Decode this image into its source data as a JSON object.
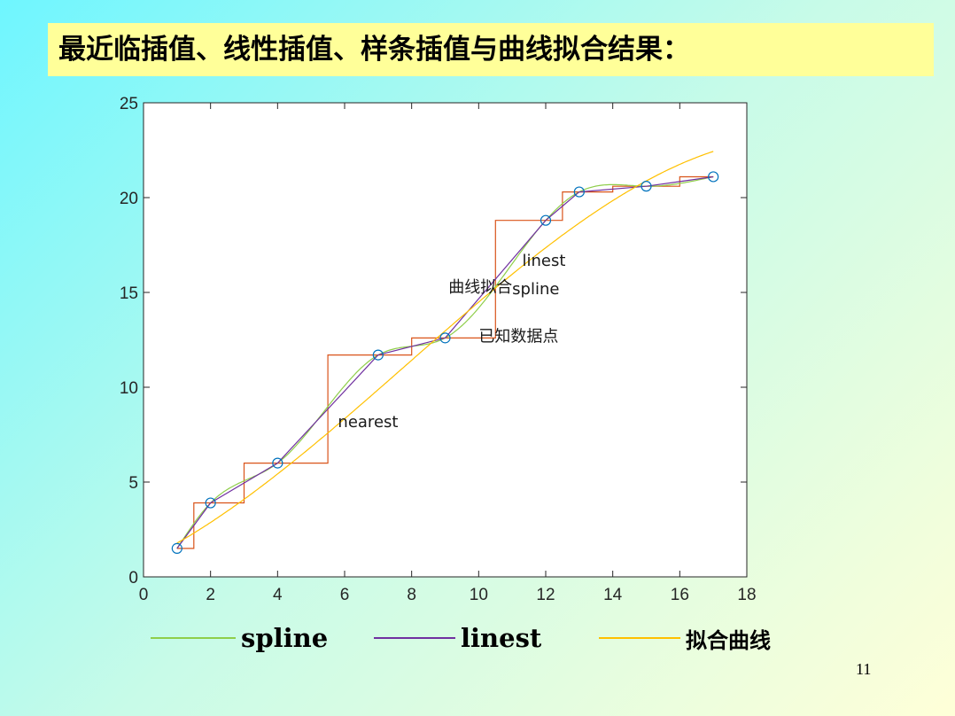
{
  "slide": {
    "title": "最近临插值、线性插值、样条插值与曲线拟合结果：",
    "page_number": "11"
  },
  "legend": [
    {
      "label": "spline",
      "color": "#8fce4a"
    },
    {
      "label": "linest",
      "color": "#7030a0"
    },
    {
      "label": "拟合曲线",
      "color": "#ffc000"
    }
  ],
  "chart_data": {
    "type": "line",
    "xlim": [
      0,
      18
    ],
    "ylim": [
      0,
      25
    ],
    "xticks": [
      0,
      2,
      4,
      6,
      8,
      10,
      12,
      14,
      16,
      18
    ],
    "yticks": [
      0,
      5,
      10,
      15,
      20,
      25
    ],
    "grid": false,
    "points": {
      "x": [
        1,
        2,
        4,
        7,
        9,
        12,
        13,
        15,
        17
      ],
      "y": [
        1.5,
        3.9,
        6.0,
        11.7,
        12.6,
        18.8,
        20.3,
        20.6,
        21.1
      ],
      "color": "#0072bd"
    },
    "series": [
      {
        "key": "nearest",
        "color": "#d95319"
      },
      {
        "key": "linest",
        "color": "#7030a0"
      },
      {
        "key": "spline",
        "color": "#8fce4a"
      },
      {
        "key": "fit",
        "color": "#ffc000",
        "coefficients": [
          -0.00385,
          0.0905,
          0.844,
          0.85
        ]
      }
    ],
    "annotations": [
      {
        "text": "linest",
        "x": 11.3,
        "y": 16.4
      },
      {
        "text": "曲线拟合",
        "x": 9.1,
        "y": 15.0
      },
      {
        "text": "spline",
        "x": 11.0,
        "y": 14.9
      },
      {
        "text": "已知数据点",
        "x": 10.0,
        "y": 12.4
      },
      {
        "text": "nearest",
        "x": 5.8,
        "y": 7.9
      }
    ]
  }
}
